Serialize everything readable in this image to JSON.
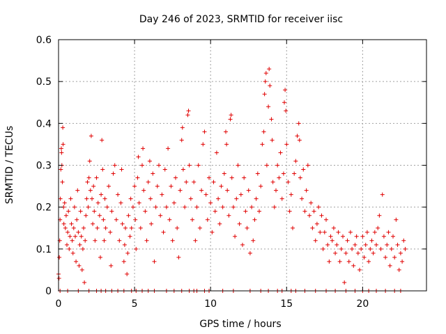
{
  "chart_data": {
    "type": "scatter",
    "title": "Day 246 of 2023, SRMTID for receiver iisc",
    "xlabel": "GPS time / hours",
    "ylabel": "SRMTID / TECUs",
    "xlim": [
      0,
      24.2
    ],
    "ylim": [
      0,
      0.6
    ],
    "xticks": [
      0,
      5,
      10,
      15,
      20
    ],
    "xtick_labels": [
      "0",
      "5",
      "10",
      "15",
      "20"
    ],
    "yticks": [
      0,
      0.1,
      0.2,
      0.3,
      0.4,
      0.5,
      0.6
    ],
    "ytick_labels": [
      "0",
      "0.1",
      "0.2",
      "0.3",
      "0.4",
      "0.5",
      "0.6"
    ],
    "grid": true,
    "marker": "+",
    "color": "#e00000",
    "series": [
      {
        "name": "SRMTID",
        "points": [
          [
            0.0,
            0.04
          ],
          [
            0.03,
            0.03
          ],
          [
            0.05,
            0.08
          ],
          [
            0.08,
            0.12
          ],
          [
            0.1,
            0.17
          ],
          [
            0.12,
            0.22
          ],
          [
            0.15,
            0.29
          ],
          [
            0.18,
            0.34
          ],
          [
            0.2,
            0.33
          ],
          [
            0.22,
            0.3
          ],
          [
            0.25,
            0.26
          ],
          [
            0.28,
            0.39
          ],
          [
            0.3,
            0.35
          ],
          [
            0.33,
            0.2
          ],
          [
            0.35,
            0.16
          ],
          [
            0.4,
            0.21
          ],
          [
            0.45,
            0.15
          ],
          [
            0.5,
            0.18
          ],
          [
            0.55,
            0.11
          ],
          [
            0.6,
            0.14
          ],
          [
            0.65,
            0.19
          ],
          [
            0.7,
            0.1
          ],
          [
            0.75,
            0.13
          ],
          [
            0.8,
            0.22
          ],
          [
            0.85,
            0.16
          ],
          [
            0.9,
            0.12
          ],
          [
            0.95,
            0.09
          ],
          [
            1.0,
            0.15
          ],
          [
            1.05,
            0.2
          ],
          [
            1.1,
            0.13
          ],
          [
            1.15,
            0.07
          ],
          [
            1.2,
            0.17
          ],
          [
            1.25,
            0.24
          ],
          [
            1.3,
            0.14
          ],
          [
            1.35,
            0.06
          ],
          [
            1.4,
            0.11
          ],
          [
            1.45,
            0.19
          ],
          [
            1.5,
            0.13
          ],
          [
            1.55,
            0.05
          ],
          [
            1.6,
            0.1
          ],
          [
            1.65,
            0.15
          ],
          [
            1.7,
            0.02
          ],
          [
            1.75,
            0.12
          ],
          [
            1.8,
            0.18
          ],
          [
            1.85,
            0.22
          ],
          [
            1.9,
            0.26
          ],
          [
            1.95,
            0.2
          ],
          [
            2.0,
            0.27
          ],
          [
            2.05,
            0.31
          ],
          [
            2.1,
            0.24
          ],
          [
            2.15,
            0.37
          ],
          [
            2.2,
            0.22
          ],
          [
            2.25,
            0.16
          ],
          [
            2.3,
            0.25
          ],
          [
            2.35,
            0.19
          ],
          [
            2.4,
            0.12
          ],
          [
            2.5,
            0.27
          ],
          [
            2.55,
            0.15
          ],
          [
            2.6,
            0.21
          ],
          [
            2.7,
            0.18
          ],
          [
            2.75,
            0.08
          ],
          [
            2.8,
            0.23
          ],
          [
            2.85,
            0.36
          ],
          [
            2.9,
            0.29
          ],
          [
            2.95,
            0.17
          ],
          [
            3.0,
            0.12
          ],
          [
            3.05,
            0.22
          ],
          [
            3.1,
            0.15
          ],
          [
            3.2,
            0.2
          ],
          [
            3.3,
            0.25
          ],
          [
            3.4,
            0.14
          ],
          [
            3.45,
            0.06
          ],
          [
            3.5,
            0.19
          ],
          [
            3.6,
            0.28
          ],
          [
            3.7,
            0.3
          ],
          [
            3.8,
            0.17
          ],
          [
            3.9,
            0.23
          ],
          [
            4.0,
            0.12
          ],
          [
            4.1,
            0.21
          ],
          [
            4.15,
            0.29
          ],
          [
            4.2,
            0.16
          ],
          [
            4.3,
            0.07
          ],
          [
            4.35,
            0.11
          ],
          [
            4.4,
            0.15
          ],
          [
            4.5,
            0.04
          ],
          [
            4.55,
            0.09
          ],
          [
            4.6,
            0.18
          ],
          [
            4.7,
            0.13
          ],
          [
            4.75,
            0.22
          ],
          [
            4.8,
            0.15
          ],
          [
            4.9,
            0.2
          ],
          [
            5.0,
            0.25
          ],
          [
            5.05,
            0.17
          ],
          [
            5.1,
            0.1
          ],
          [
            5.2,
            0.27
          ],
          [
            5.25,
            0.32
          ],
          [
            5.3,
            0.21
          ],
          [
            5.4,
            0.15
          ],
          [
            5.5,
            0.3
          ],
          [
            5.55,
            0.34
          ],
          [
            5.6,
            0.24
          ],
          [
            5.7,
            0.19
          ],
          [
            5.8,
            0.12
          ],
          [
            5.9,
            0.26
          ],
          [
            6.0,
            0.31
          ],
          [
            6.05,
            0.22
          ],
          [
            6.1,
            0.16
          ],
          [
            6.2,
            0.28
          ],
          [
            6.3,
            0.07
          ],
          [
            6.4,
            0.2
          ],
          [
            6.5,
            0.25
          ],
          [
            6.6,
            0.3
          ],
          [
            6.7,
            0.18
          ],
          [
            6.8,
            0.23
          ],
          [
            6.9,
            0.14
          ],
          [
            7.0,
            0.29
          ],
          [
            7.1,
            0.2
          ],
          [
            7.2,
            0.34
          ],
          [
            7.3,
            0.17
          ],
          [
            7.4,
            0.25
          ],
          [
            7.5,
            0.12
          ],
          [
            7.6,
            0.21
          ],
          [
            7.7,
            0.27
          ],
          [
            7.8,
            0.15
          ],
          [
            7.9,
            0.08
          ],
          [
            8.0,
            0.24
          ],
          [
            8.1,
            0.36
          ],
          [
            8.15,
            0.39
          ],
          [
            8.2,
            0.29
          ],
          [
            8.3,
            0.2
          ],
          [
            8.4,
            0.26
          ],
          [
            8.5,
            0.42
          ],
          [
            8.55,
            0.43
          ],
          [
            8.6,
            0.3
          ],
          [
            8.7,
            0.22
          ],
          [
            8.8,
            0.17
          ],
          [
            8.9,
            0.26
          ],
          [
            9.0,
            0.12
          ],
          [
            9.1,
            0.2
          ],
          [
            9.2,
            0.3
          ],
          [
            9.3,
            0.15
          ],
          [
            9.4,
            0.24
          ],
          [
            9.5,
            0.35
          ],
          [
            9.6,
            0.38
          ],
          [
            9.7,
            0.23
          ],
          [
            9.8,
            0.17
          ],
          [
            9.9,
            0.27
          ],
          [
            10.0,
            0.21
          ],
          [
            10.1,
            0.14
          ],
          [
            10.2,
            0.26
          ],
          [
            10.3,
            0.19
          ],
          [
            10.4,
            0.33
          ],
          [
            10.5,
            0.22
          ],
          [
            10.6,
            0.16
          ],
          [
            10.7,
            0.25
          ],
          [
            10.8,
            0.2
          ],
          [
            10.9,
            0.28
          ],
          [
            11.0,
            0.38
          ],
          [
            11.05,
            0.35
          ],
          [
            11.1,
            0.24
          ],
          [
            11.2,
            0.18
          ],
          [
            11.3,
            0.41
          ],
          [
            11.35,
            0.42
          ],
          [
            11.4,
            0.27
          ],
          [
            11.5,
            0.2
          ],
          [
            11.6,
            0.13
          ],
          [
            11.7,
            0.22
          ],
          [
            11.8,
            0.3
          ],
          [
            11.9,
            0.16
          ],
          [
            12.0,
            0.23
          ],
          [
            12.1,
            0.11
          ],
          [
            12.2,
            0.27
          ],
          [
            12.3,
            0.19
          ],
          [
            12.4,
            0.15
          ],
          [
            12.5,
            0.24
          ],
          [
            12.6,
            0.09
          ],
          [
            12.7,
            0.2
          ],
          [
            12.8,
            0.12
          ],
          [
            12.9,
            0.17
          ],
          [
            13.0,
            0.22
          ],
          [
            13.1,
            0.28
          ],
          [
            13.2,
            0.19
          ],
          [
            13.3,
            0.25
          ],
          [
            13.4,
            0.35
          ],
          [
            13.5,
            0.38
          ],
          [
            13.55,
            0.47
          ],
          [
            13.6,
            0.5
          ],
          [
            13.65,
            0.52
          ],
          [
            13.7,
            0.3
          ],
          [
            13.8,
            0.44
          ],
          [
            13.85,
            0.53
          ],
          [
            13.9,
            0.49
          ],
          [
            14.0,
            0.41
          ],
          [
            14.05,
            0.36
          ],
          [
            14.1,
            0.26
          ],
          [
            14.2,
            0.2
          ],
          [
            14.3,
            0.24
          ],
          [
            14.4,
            0.3
          ],
          [
            14.5,
            0.27
          ],
          [
            14.6,
            0.33
          ],
          [
            14.7,
            0.22
          ],
          [
            14.8,
            0.28
          ],
          [
            14.85,
            0.45
          ],
          [
            14.9,
            0.48
          ],
          [
            14.95,
            0.43
          ],
          [
            15.0,
            0.35
          ],
          [
            15.1,
            0.26
          ],
          [
            15.2,
            0.19
          ],
          [
            15.3,
            0.23
          ],
          [
            15.4,
            0.15
          ],
          [
            15.5,
            0.28
          ],
          [
            15.6,
            0.31
          ],
          [
            15.7,
            0.37
          ],
          [
            15.8,
            0.4
          ],
          [
            15.85,
            0.36
          ],
          [
            15.9,
            0.27
          ],
          [
            16.0,
            0.22
          ],
          [
            16.1,
            0.29
          ],
          [
            16.2,
            0.19
          ],
          [
            16.3,
            0.24
          ],
          [
            16.4,
            0.3
          ],
          [
            16.5,
            0.18
          ],
          [
            16.6,
            0.21
          ],
          [
            16.7,
            0.15
          ],
          [
            16.8,
            0.19
          ],
          [
            16.9,
            0.12
          ],
          [
            17.0,
            0.16
          ],
          [
            17.1,
            0.2
          ],
          [
            17.2,
            0.14
          ],
          [
            17.3,
            0.18
          ],
          [
            17.4,
            0.1
          ],
          [
            17.5,
            0.14
          ],
          [
            17.6,
            0.17
          ],
          [
            17.7,
            0.11
          ],
          [
            17.8,
            0.07
          ],
          [
            17.9,
            0.13
          ],
          [
            18.0,
            0.12
          ],
          [
            18.1,
            0.15
          ],
          [
            18.2,
            0.09
          ],
          [
            18.3,
            0.11
          ],
          [
            18.4,
            0.14
          ],
          [
            18.5,
            0.07
          ],
          [
            18.6,
            0.1
          ],
          [
            18.7,
            0.13
          ],
          [
            18.8,
            0.02
          ],
          [
            18.9,
            0.09
          ],
          [
            19.0,
            0.12
          ],
          [
            19.1,
            0.07
          ],
          [
            19.2,
            0.14
          ],
          [
            19.3,
            0.1
          ],
          [
            19.4,
            0.06
          ],
          [
            19.5,
            0.11
          ],
          [
            19.6,
            0.13
          ],
          [
            19.7,
            0.09
          ],
          [
            19.8,
            0.05
          ],
          [
            19.9,
            0.1
          ],
          [
            20.0,
            0.13
          ],
          [
            20.1,
            0.08
          ],
          [
            20.2,
            0.11
          ],
          [
            20.3,
            0.14
          ],
          [
            20.4,
            0.07
          ],
          [
            20.5,
            0.1
          ],
          [
            20.6,
            0.12
          ],
          [
            20.7,
            0.09
          ],
          [
            20.8,
            0.14
          ],
          [
            20.9,
            0.11
          ],
          [
            21.0,
            0.15
          ],
          [
            21.1,
            0.18
          ],
          [
            21.2,
            0.1
          ],
          [
            21.3,
            0.23
          ],
          [
            21.4,
            0.13
          ],
          [
            21.5,
            0.08
          ],
          [
            21.6,
            0.11
          ],
          [
            21.7,
            0.14
          ],
          [
            21.8,
            0.06
          ],
          [
            21.9,
            0.1
          ],
          [
            22.0,
            0.13
          ],
          [
            22.1,
            0.08
          ],
          [
            22.2,
            0.17
          ],
          [
            22.3,
            0.11
          ],
          [
            22.4,
            0.05
          ],
          [
            22.5,
            0.09
          ],
          [
            22.6,
            0.07
          ],
          [
            22.7,
            0.12
          ],
          [
            22.8,
            0.1
          ]
        ],
        "zero_x": [
          0.1,
          0.6,
          1.3,
          2.0,
          2.5,
          2.8,
          3.1,
          3.5,
          3.9,
          4.3,
          4.8,
          5.1,
          5.5,
          5.9,
          6.3,
          7.1,
          7.6,
          8.1,
          8.6,
          8.9,
          9.1,
          9.6,
          9.9,
          10.8,
          11.5,
          12.6,
          13.3,
          13.8,
          14.4,
          14.7,
          15.3,
          15.6,
          16.2,
          16.9,
          17.6,
          18.2,
          18.9,
          19.5,
          20.0,
          20.4,
          20.9,
          21.5,
          22.1,
          22.5
        ]
      }
    ]
  }
}
